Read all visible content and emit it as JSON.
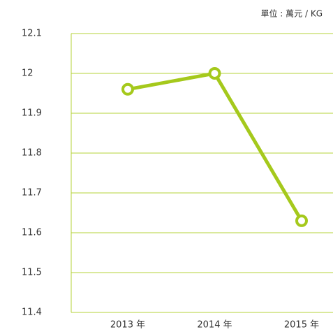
{
  "chart_data": {
    "type": "line",
    "unit_label": "單位 : 萬元 / KG",
    "categories": [
      "2013 年",
      "2014 年",
      "2015 年"
    ],
    "series": [
      {
        "name": null,
        "color": "#a5c91c",
        "values": [
          11.96,
          12.0,
          11.63
        ]
      }
    ],
    "ylim": [
      11.4,
      12.1
    ],
    "yticks": [
      11.4,
      11.5,
      11.6,
      11.7,
      11.8,
      11.9,
      12,
      12.1
    ],
    "grid": true,
    "grid_color": "#b5d33a"
  }
}
